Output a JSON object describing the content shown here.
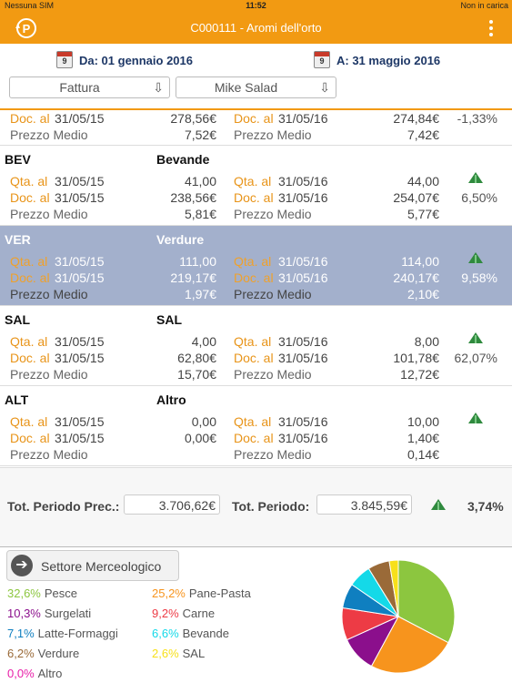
{
  "status_bar": {
    "carrier": "Nessuna SIM",
    "time": "11:52",
    "battery": "Non in carica"
  },
  "nav": {
    "title": "C000111 - Aromi dell'orto"
  },
  "dates": {
    "from_label": "Da: 01 gennaio 2016",
    "to_label": "A: 31 maggio 2016",
    "calendar_day": "9"
  },
  "filters": {
    "type_value": "Fattura",
    "customer_value": "Mike Salad"
  },
  "partial_section": {
    "doc_prev_label": "Doc. al",
    "doc_prev_date": "31/05/15",
    "doc_prev_value": "278,56€",
    "doc_cur_label": "Doc. al",
    "doc_cur_date": "31/05/16",
    "doc_cur_value": "274,84€",
    "pct": "-1,33%",
    "avg_label": "Prezzo Medio",
    "avg_prev": "7,52€",
    "avg_cur_label": "Prezzo Medio",
    "avg_cur": "7,42€"
  },
  "sections": [
    {
      "code": "BEV",
      "name": "Bevande",
      "qta_label": "Qta. al",
      "doc_label": "Doc. al",
      "avg_label": "Prezzo Medio",
      "prev_date": "31/05/15",
      "cur_date": "31/05/16",
      "qta_prev": "41,00",
      "qta_cur": "44,00",
      "doc_prev": "238,56€",
      "doc_cur": "254,07€",
      "avg_prev": "5,81€",
      "avg_cur": "5,77€",
      "pct": "6,50%",
      "trend": "up"
    },
    {
      "code": "VER",
      "name": "Verdure",
      "qta_label": "Qta. al",
      "doc_label": "Doc. al",
      "avg_label": "Prezzo Medio",
      "prev_date": "31/05/15",
      "cur_date": "31/05/16",
      "qta_prev": "111,00",
      "qta_cur": "114,00",
      "doc_prev": "219,17€",
      "doc_cur": "240,17€",
      "avg_prev": "1,97€",
      "avg_cur": "2,10€",
      "pct": "9,58%",
      "trend": "up",
      "selected": true
    },
    {
      "code": "SAL",
      "name": "SAL",
      "qta_label": "Qta. al",
      "doc_label": "Doc. al",
      "avg_label": "Prezzo Medio",
      "prev_date": "31/05/15",
      "cur_date": "31/05/16",
      "qta_prev": "4,00",
      "qta_cur": "8,00",
      "doc_prev": "62,80€",
      "doc_cur": "101,78€",
      "avg_prev": "15,70€",
      "avg_cur": "12,72€",
      "pct": "62,07%",
      "trend": "up"
    },
    {
      "code": "ALT",
      "name": "Altro",
      "qta_label": "Qta. al",
      "doc_label": "Doc. al",
      "avg_label": "Prezzo Medio",
      "prev_date": "31/05/15",
      "cur_date": "31/05/16",
      "qta_prev": "0,00",
      "qta_cur": "10,00",
      "doc_prev": "0,00€",
      "doc_cur": "1,40€",
      "avg_prev": "",
      "avg_cur": "0,14€",
      "pct": "",
      "trend": "up"
    }
  ],
  "totals": {
    "prev_label": "Tot. Periodo Prec.:",
    "prev_value": "3.706,62€",
    "cur_label": "Tot. Periodo:",
    "cur_value": "3.845,59€",
    "pct": "3,74%",
    "trend": "up"
  },
  "sector_button": {
    "label": "Settore Merceologico"
  },
  "legend": [
    {
      "pct": "32,6%",
      "name": "Pesce",
      "color": "#8cc63f"
    },
    {
      "pct": "25,2%",
      "name": "Pane-Pasta",
      "color": "#f7941d"
    },
    {
      "pct": "10,3%",
      "name": "Surgelati",
      "color": "#8b0f8c"
    },
    {
      "pct": "9,2%",
      "name": "Carne",
      "color": "#ed3b45"
    },
    {
      "pct": "7,1%",
      "name": "Latte-Formaggi",
      "color": "#0f7fc0"
    },
    {
      "pct": "6,6%",
      "name": "Bevande",
      "color": "#14d9e8"
    },
    {
      "pct": "6,2%",
      "name": "Verdure",
      "color": "#9a6a38"
    },
    {
      "pct": "2,6%",
      "name": "SAL",
      "color": "#f7e01a"
    },
    {
      "pct": "0,0%",
      "name": "Altro",
      "color": "#e81ea8"
    }
  ],
  "chart_data": {
    "type": "pie",
    "categories": [
      "Pesce",
      "Pane-Pasta",
      "Surgelati",
      "Carne",
      "Latte-Formaggi",
      "Bevande",
      "Verdure",
      "SAL",
      "Altro"
    ],
    "values": [
      32.6,
      25.2,
      10.3,
      9.2,
      7.1,
      6.6,
      6.2,
      2.6,
      0.0
    ],
    "colors": [
      "#8cc63f",
      "#f7941d",
      "#8b0f8c",
      "#ed3b45",
      "#0f7fc0",
      "#14d9e8",
      "#9a6a38",
      "#f7e01a",
      "#e81ea8"
    ]
  },
  "icons": {
    "back": "back-logo-icon",
    "menu": "menu-dots-icon",
    "calendar": "calendar-icon",
    "sort": "sort-arrows-icon",
    "trend": "trend-up-icon",
    "arrow": "arrow-right-icon"
  }
}
